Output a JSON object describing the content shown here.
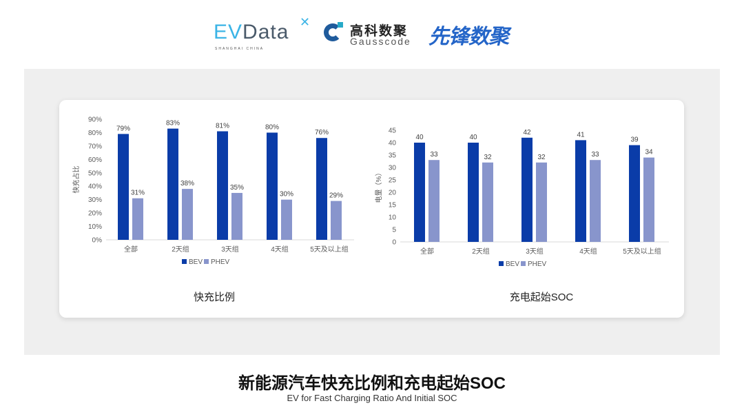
{
  "logos": {
    "evdata": {
      "ev": "EV",
      "rest": "Data",
      "tagline": "SHANGHAI CHINA"
    },
    "gausscode": {
      "cn": "高科数聚",
      "en": "Gausscode"
    },
    "xianfeng": "先锋数聚"
  },
  "colors": {
    "bev": "#0a3ca8",
    "phev": "#8895cc",
    "panel": "#efefef"
  },
  "chart_data": [
    {
      "type": "bar",
      "title": "快充比例",
      "categories": [
        "全部",
        "2天组",
        "3天组",
        "4天组",
        "5天及以上组"
      ],
      "series": [
        {
          "name": "BEV",
          "values": [
            79,
            83,
            81,
            80,
            76
          ],
          "labels": [
            "79%",
            "83%",
            "81%",
            "80%",
            "76%"
          ]
        },
        {
          "name": "PHEV",
          "values": [
            31,
            38,
            35,
            30,
            29
          ],
          "labels": [
            "31%",
            "38%",
            "35%",
            "30%",
            "29%"
          ]
        }
      ],
      "ylabel": "快充占比",
      "ylim": [
        0,
        90
      ],
      "yticks": [
        "0%",
        "10%",
        "20%",
        "30%",
        "40%",
        "50%",
        "60%",
        "70%",
        "80%",
        "90%"
      ],
      "legend": "bottom",
      "grid": false
    },
    {
      "type": "bar",
      "title": "充电起始SOC",
      "categories": [
        "全部",
        "2天组",
        "3天组",
        "4天组",
        "5天及以上组"
      ],
      "series": [
        {
          "name": "BEV",
          "values": [
            40,
            40,
            42,
            41,
            39
          ],
          "labels": [
            "40",
            "40",
            "42",
            "41",
            "39"
          ]
        },
        {
          "name": "PHEV",
          "values": [
            33,
            32,
            32,
            33,
            34
          ],
          "labels": [
            "33",
            "32",
            "32",
            "33",
            "34"
          ]
        }
      ],
      "ylabel": "电量（%）",
      "ylim": [
        0,
        45
      ],
      "yticks": [
        "0",
        "5",
        "10",
        "15",
        "20",
        "25",
        "30",
        "35",
        "40",
        "45"
      ],
      "legend": "bottom",
      "grid": false
    }
  ],
  "footer": {
    "title": "新能源汽车快充比例和充电起始SOC",
    "subtitle": "EV for Fast Charging Ratio And Initial SOC"
  }
}
